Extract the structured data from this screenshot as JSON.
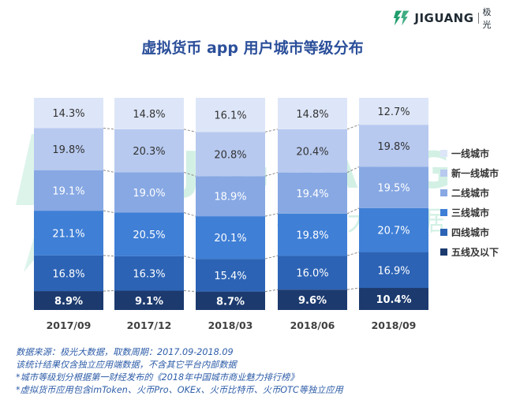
{
  "brand": {
    "name": "JIGUANG",
    "cn": "极光"
  },
  "watermark": {
    "text": "JIGUANG",
    "cn": "极 光 大 数 据"
  },
  "colors": {
    "title": "#2b4f9a",
    "note": "#2e5da8",
    "axis_text": "#404040",
    "watermark": "#9fe0c6",
    "logo_green": "#1f9d6d"
  },
  "chart_data": {
    "type": "bar",
    "stacked": true,
    "normalized": true,
    "title": "虚拟货币 app 用户城市等级分布",
    "categories": [
      "2017/09",
      "2017/12",
      "2018/03",
      "2018/06",
      "2018/09"
    ],
    "value_unit": "%",
    "series": [
      {
        "name": "五线及以下",
        "color": "#1c3a6e",
        "label_color": "#ffffff",
        "values": [
          8.9,
          9.1,
          8.7,
          9.6,
          10.4
        ]
      },
      {
        "name": "四线城市",
        "color": "#2c63b5",
        "label_color": "#ffffff",
        "values": [
          16.8,
          16.3,
          15.4,
          16.0,
          16.9
        ]
      },
      {
        "name": "三线城市",
        "color": "#3f7fd6",
        "label_color": "#ffffff",
        "values": [
          21.1,
          20.5,
          20.1,
          19.8,
          20.7
        ]
      },
      {
        "name": "二线城市",
        "color": "#87a8e3",
        "label_color": "#ffffff",
        "values": [
          19.1,
          19.0,
          18.9,
          19.4,
          19.5
        ]
      },
      {
        "name": "新一线城市",
        "color": "#b7c9ef",
        "label_color": "#333333",
        "values": [
          19.8,
          20.3,
          20.8,
          20.4,
          19.8
        ]
      },
      {
        "name": "一线城市",
        "color": "#dde6f8",
        "label_color": "#333333",
        "values": [
          14.3,
          14.8,
          16.1,
          14.8,
          12.7
        ]
      }
    ],
    "legend_position": "right",
    "ylim": [
      0,
      100
    ],
    "grid": false
  },
  "footnotes": [
    "数据来源：极光大数据，取数周期：2017.09-2018.09",
    "该统计结果仅含独立应用端数据，不含其它平台内部数据",
    " *城市等级划分根据第一财经发布的《2018年中国城市商业魅力排行榜》",
    " *虚拟货币应用包含imToken、火币Pro、OKEx、火币比特币、火币OTC等独立应用"
  ]
}
